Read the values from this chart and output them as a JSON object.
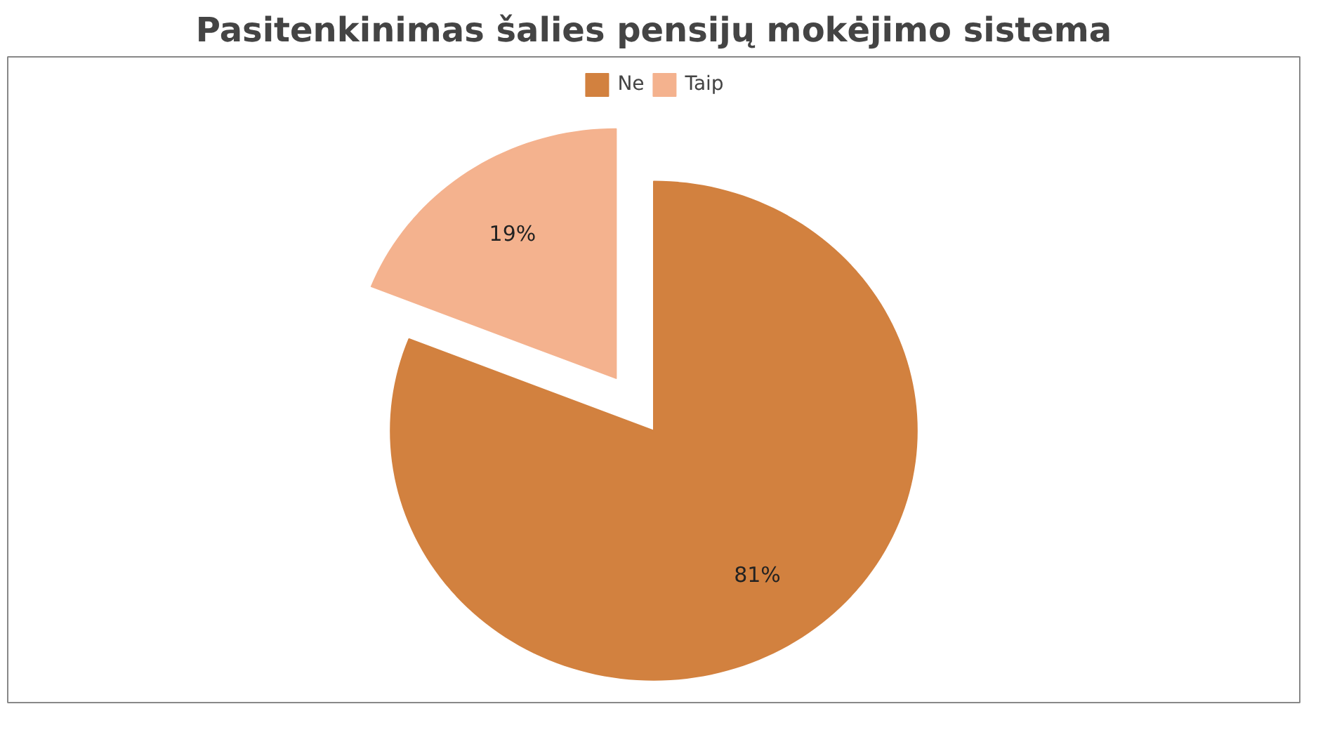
{
  "chart_data": {
    "type": "pie",
    "title": "Pasitenkinimas šalies pensijų mokėjimo sistema",
    "categories": [
      "Ne",
      "Taip"
    ],
    "values": [
      81,
      19
    ],
    "colors": [
      "#d2813f",
      "#f4b28e"
    ],
    "value_labels": [
      "81%",
      "19%"
    ],
    "legend": "top"
  }
}
